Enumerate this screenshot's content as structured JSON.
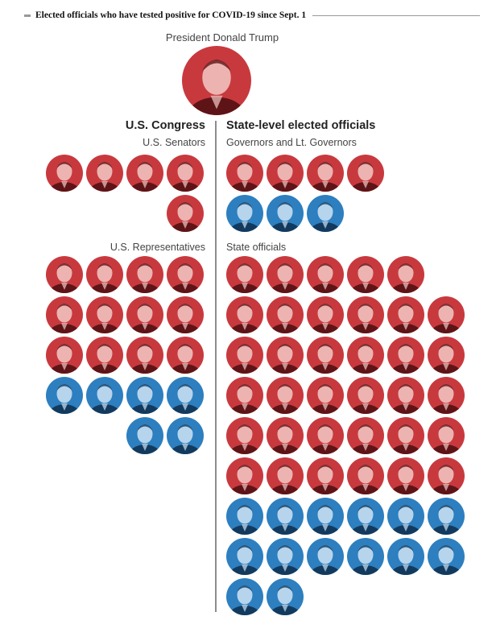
{
  "header": {
    "title": "Elected officials who have tested positive for COVID-19 since Sept. 1"
  },
  "president": {
    "label": "President Donald Trump",
    "party": "R"
  },
  "congress": {
    "heading": "U.S. Congress",
    "senators": {
      "label": "U.S. Senators",
      "parties": [
        "R",
        "R",
        "R",
        "R",
        "R"
      ]
    },
    "representatives": {
      "label": "U.S. Representatives",
      "parties": [
        "R",
        "R",
        "R",
        "R",
        "R",
        "R",
        "R",
        "R",
        "R",
        "R",
        "R",
        "R",
        "D",
        "D",
        "D",
        "D",
        "D",
        "D"
      ]
    }
  },
  "state": {
    "heading": "State-level elected officials",
    "governors": {
      "label": "Governors and Lt. Governors",
      "parties": [
        "R",
        "R",
        "R",
        "R",
        "D",
        "D",
        "D"
      ]
    },
    "officials": {
      "label": "State officials",
      "parties": [
        "R",
        "R",
        "R",
        "R",
        "R",
        "R",
        "R",
        "R",
        "R",
        "R",
        "R",
        "R",
        "R",
        "R",
        "R",
        "R",
        "R",
        "R",
        "R",
        "R",
        "R",
        "R",
        "R",
        "R",
        "R",
        "R",
        "R",
        "R",
        "R",
        "R",
        "R",
        "R",
        "R",
        "R",
        "R",
        "D",
        "D",
        "D",
        "D",
        "D",
        "D",
        "D",
        "D",
        "D",
        "D",
        "D",
        "D",
        "D",
        "D"
      ]
    }
  },
  "colors": {
    "republican": "#c8393e",
    "democrat": "#2d7fbf",
    "divider": "#8c8c8c"
  }
}
